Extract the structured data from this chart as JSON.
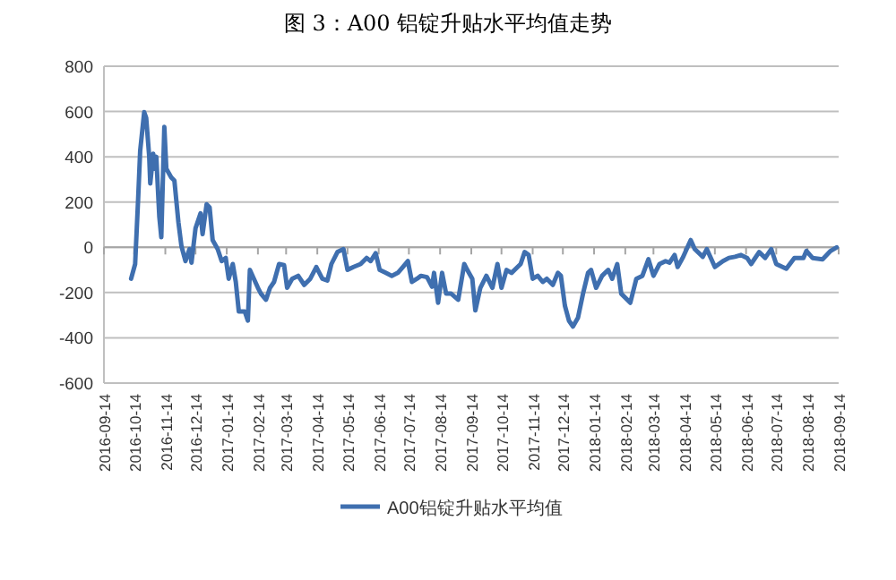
{
  "chart_data": {
    "type": "line",
    "title": "图 3：A00 铝锭升贴水平均值走势",
    "x": [
      "2016-10-11",
      "2016-10-15",
      "2016-10-18",
      "2016-10-20",
      "2016-10-24",
      "2016-10-26",
      "2016-10-29",
      "2016-10-30",
      "2016-11-02",
      "2016-11-03",
      "2016-11-05",
      "2016-11-08",
      "2016-11-10",
      "2016-11-13",
      "2016-11-15",
      "2016-11-20",
      "2016-11-23",
      "2016-11-27",
      "2016-11-30",
      "2016-12-04",
      "2016-12-08",
      "2016-12-10",
      "2016-12-14",
      "2016-12-19",
      "2016-12-21",
      "2016-12-25",
      "2016-12-28",
      "2016-12-31",
      "2017-01-05",
      "2017-01-09",
      "2017-01-13",
      "2017-01-16",
      "2017-01-20",
      "2017-01-23",
      "2017-01-26",
      "2017-02-01",
      "2017-02-04",
      "2017-02-06",
      "2017-02-10",
      "2017-02-14",
      "2017-02-17",
      "2017-02-22",
      "2017-02-26",
      "2017-03-02",
      "2017-03-07",
      "2017-03-12",
      "2017-03-15",
      "2017-03-20",
      "2017-03-26",
      "2017-04-01",
      "2017-04-07",
      "2017-04-13",
      "2017-04-19",
      "2017-04-24",
      "2017-04-28",
      "2017-05-04",
      "2017-05-10",
      "2017-05-14",
      "2017-05-20",
      "2017-05-27",
      "2017-06-02",
      "2017-06-06",
      "2017-06-11",
      "2017-06-15",
      "2017-06-21",
      "2017-06-27",
      "2017-07-03",
      "2017-07-08",
      "2017-07-13",
      "2017-07-17",
      "2017-07-22",
      "2017-07-26",
      "2017-08-01",
      "2017-08-06",
      "2017-08-08",
      "2017-08-12",
      "2017-08-16",
      "2017-08-20",
      "2017-08-25",
      "2017-09-01",
      "2017-09-07",
      "2017-09-10",
      "2017-09-15",
      "2017-09-18",
      "2017-09-23",
      "2017-09-29",
      "2017-10-05",
      "2017-10-10",
      "2017-10-14",
      "2017-10-19",
      "2017-10-24",
      "2017-10-30",
      "2017-11-02",
      "2017-11-06",
      "2017-11-10",
      "2017-11-14",
      "2017-11-19",
      "2017-11-24",
      "2017-11-28",
      "2017-12-04",
      "2017-12-09",
      "2017-12-12",
      "2017-12-16",
      "2017-12-20",
      "2017-12-24",
      "2017-12-29",
      "2018-01-03",
      "2018-01-08",
      "2018-01-11",
      "2018-01-16",
      "2018-01-22",
      "2018-01-28",
      "2018-02-01",
      "2018-02-06",
      "2018-02-10",
      "2018-02-19",
      "2018-02-25",
      "2018-03-03",
      "2018-03-09",
      "2018-03-14",
      "2018-03-20",
      "2018-03-26",
      "2018-03-30",
      "2018-04-04",
      "2018-04-07",
      "2018-04-12",
      "2018-04-20",
      "2018-04-24",
      "2018-05-02",
      "2018-05-06",
      "2018-05-14",
      "2018-05-22",
      "2018-05-28",
      "2018-06-03",
      "2018-06-09",
      "2018-06-15",
      "2018-06-19",
      "2018-06-27",
      "2018-07-03",
      "2018-07-09",
      "2018-07-14",
      "2018-07-24",
      "2018-08-01",
      "2018-08-10",
      "2018-08-13",
      "2018-08-19",
      "2018-08-29",
      "2018-09-06",
      "2018-09-12"
    ],
    "series": [
      {
        "name": "A00铝锭升贴水平均值",
        "color": "#3f6faf",
        "values": [
          -139,
          -74,
          216,
          426,
          597,
          571,
          400,
          282,
          413,
          347,
          400,
          137,
          45,
          532,
          347,
          308,
          295,
          111,
          5,
          -61,
          -8,
          -68,
          84,
          150,
          58,
          190,
          176,
          32,
          -8,
          -61,
          -47,
          -139,
          -74,
          -153,
          -284,
          -284,
          -324,
          -100,
          -139,
          -179,
          -205,
          -232,
          -179,
          -153,
          -74,
          -79,
          -179,
          -139,
          -126,
          -166,
          -139,
          -87,
          -139,
          -147,
          -74,
          -21,
          -8,
          -100,
          -87,
          -74,
          -47,
          -61,
          -26,
          -100,
          -113,
          -126,
          -113,
          -87,
          -61,
          -153,
          -139,
          -126,
          -132,
          -174,
          -113,
          -245,
          -113,
          -205,
          -205,
          -232,
          -74,
          -100,
          -139,
          -279,
          -179,
          -126,
          -179,
          -74,
          -179,
          -100,
          -113,
          -87,
          -74,
          -21,
          -34,
          -139,
          -126,
          -153,
          -139,
          -166,
          -113,
          -126,
          -258,
          -324,
          -350,
          -311,
          -205,
          -113,
          -100,
          -179,
          -126,
          -100,
          -139,
          -74,
          -205,
          -245,
          -139,
          -126,
          -53,
          -126,
          -74,
          -61,
          -68,
          -34,
          -87,
          -47,
          32,
          -8,
          -42,
          -8,
          -87,
          -61,
          -47,
          -42,
          -34,
          -47,
          -74,
          -21,
          -47,
          -8,
          -74,
          -95,
          -47,
          -47,
          -16,
          -47,
          -53,
          -16,
          0
        ]
      }
    ],
    "xlim": [
      "2016-09-14",
      "2018-09-14"
    ],
    "xticks": [
      "2016-09-14",
      "2016-10-14",
      "2016-11-14",
      "2016-12-14",
      "2017-01-14",
      "2017-02-14",
      "2017-03-14",
      "2017-04-14",
      "2017-05-14",
      "2017-06-14",
      "2017-07-14",
      "2017-08-14",
      "2017-09-14",
      "2017-10-14",
      "2017-11-14",
      "2017-12-14",
      "2018-01-14",
      "2018-02-14",
      "2018-03-14",
      "2018-04-14",
      "2018-05-14",
      "2018-06-14",
      "2018-07-14",
      "2018-08-14",
      "2018-09-14"
    ],
    "ylim": [
      -600,
      800
    ],
    "yticks": [
      -600,
      -400,
      -200,
      0,
      200,
      400,
      600,
      800
    ],
    "grid": "y",
    "legend": "bottom",
    "marker": "none",
    "line_style": "solid"
  }
}
